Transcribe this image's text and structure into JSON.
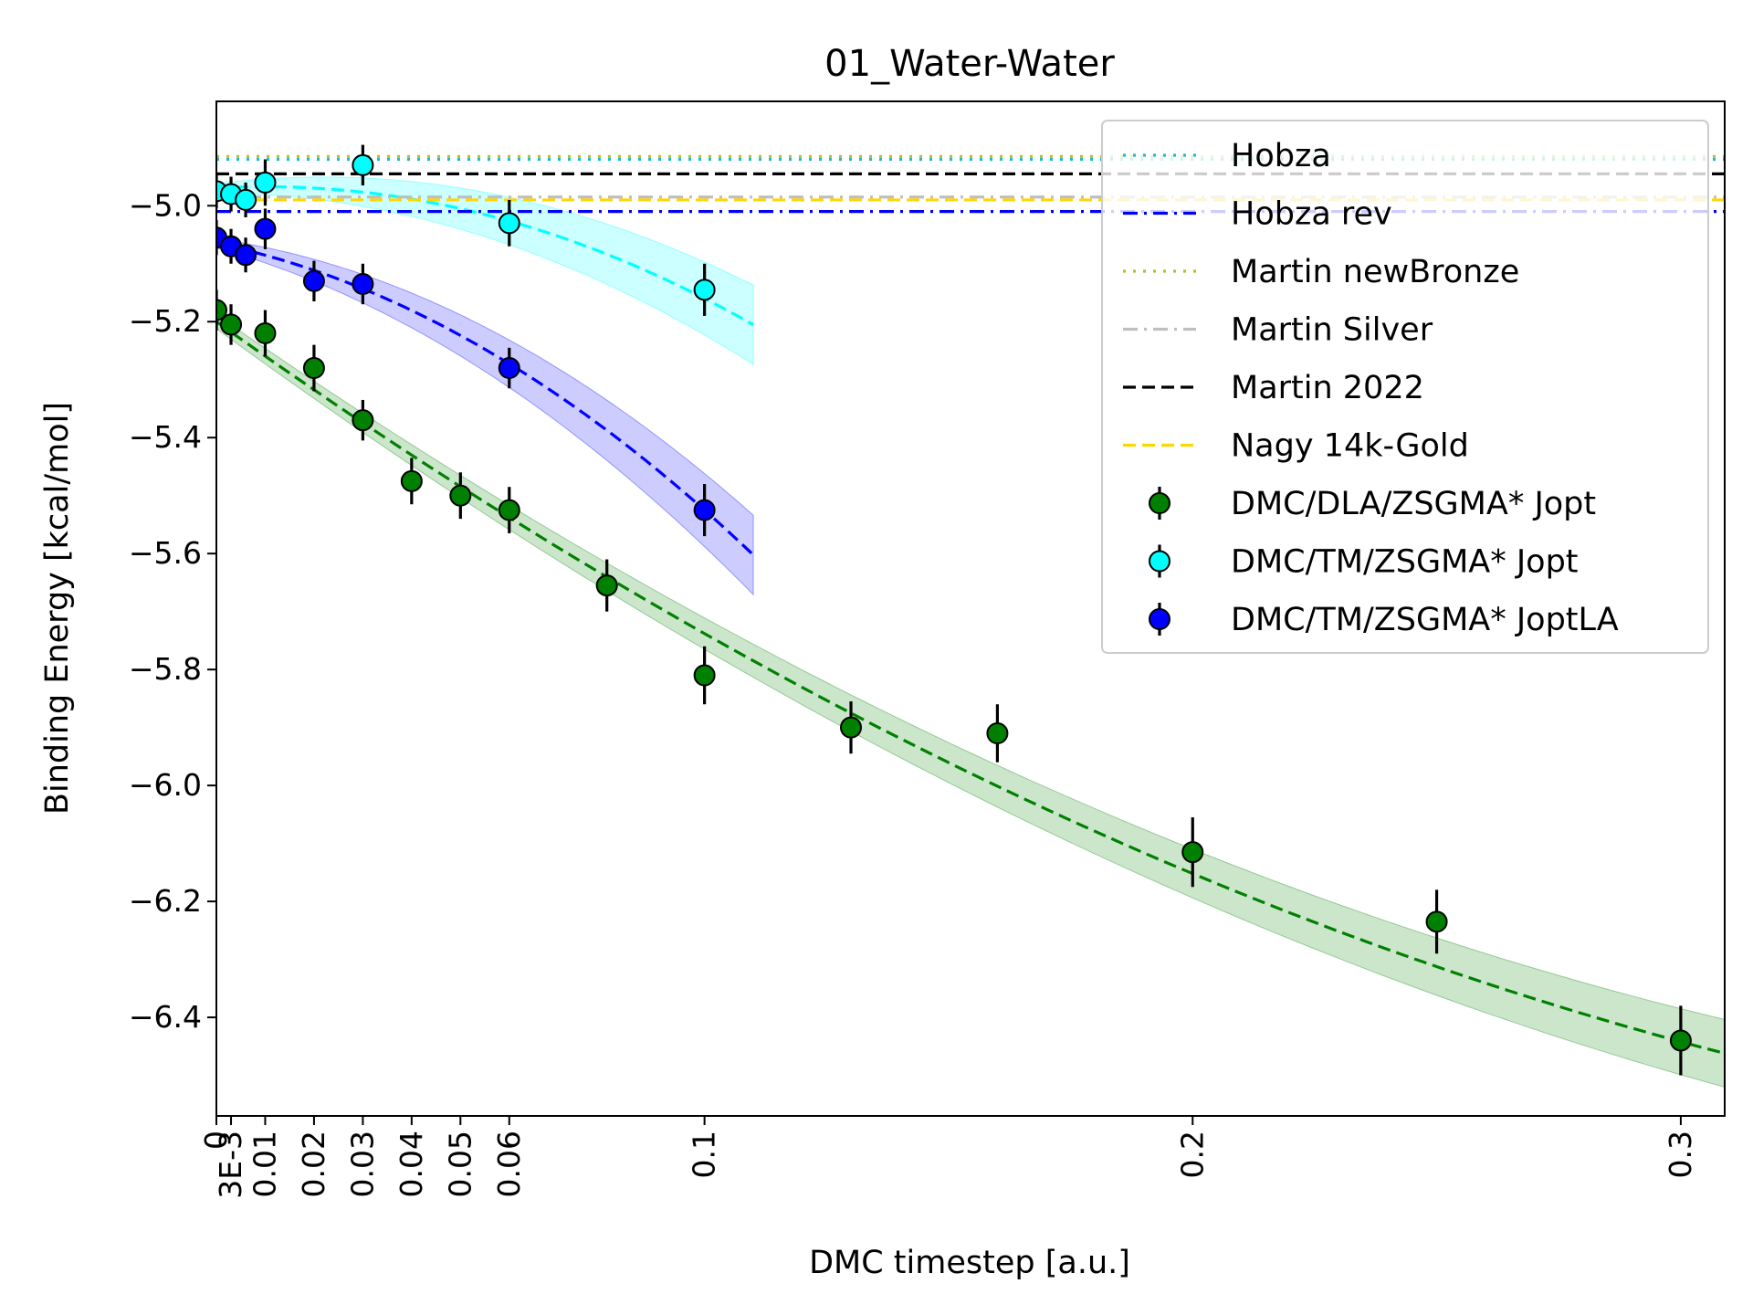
{
  "chart_data": {
    "type": "scatter",
    "title": "01_Water-Water",
    "xlabel": "DMC timestep [a.u.]",
    "ylabel": "Binding Energy [kcal/mol]",
    "xlim": [
      0,
      0.309
    ],
    "ylim": [
      -6.57,
      -4.82
    ],
    "grid": false,
    "legend_position": "top-right",
    "x_ticks": [
      {
        "value": 0,
        "label": "0"
      },
      {
        "value": 0.003,
        "label": "3E-3"
      },
      {
        "value": 0.01,
        "label": "0.01"
      },
      {
        "value": 0.02,
        "label": "0.02"
      },
      {
        "value": 0.03,
        "label": "0.03"
      },
      {
        "value": 0.04,
        "label": "0.04"
      },
      {
        "value": 0.05,
        "label": "0.05"
      },
      {
        "value": 0.06,
        "label": "0.06"
      },
      {
        "value": 0.1,
        "label": "0.1"
      },
      {
        "value": 0.2,
        "label": "0.2"
      },
      {
        "value": 0.3,
        "label": "0.3"
      }
    ],
    "y_ticks": [
      {
        "value": -5.0,
        "label": "−5.0"
      },
      {
        "value": -5.2,
        "label": "−5.2"
      },
      {
        "value": -5.4,
        "label": "−5.4"
      },
      {
        "value": -5.6,
        "label": "−5.6"
      },
      {
        "value": -5.8,
        "label": "−5.8"
      },
      {
        "value": -6.0,
        "label": "−6.0"
      },
      {
        "value": -6.2,
        "label": "−6.2"
      },
      {
        "value": -6.4,
        "label": "−6.4"
      }
    ],
    "reference_lines": [
      {
        "name": "Hobza",
        "y": -4.92,
        "color": "#17becf",
        "style": "dotted"
      },
      {
        "name": "Hobza rev",
        "y": -5.01,
        "color": "#0000ff",
        "style": "dashdot"
      },
      {
        "name": "Martin newBronze",
        "y": -4.915,
        "color": "#bcbd22",
        "style": "dotted"
      },
      {
        "name": "Martin Silver",
        "y": -4.985,
        "color": "#bfbfbf",
        "style": "dashdot"
      },
      {
        "name": "Martin 2022",
        "y": -4.945,
        "color": "#000000",
        "style": "dashed"
      },
      {
        "name": "Nagy 14k-Gold",
        "y": -4.99,
        "color": "#ffd700",
        "style": "dashed"
      }
    ],
    "series": [
      {
        "name": "DMC/DLA/ZSGMA* Jopt",
        "color": "#008000",
        "points": [
          {
            "x": 0.0,
            "y": -5.18,
            "err": 0.035
          },
          {
            "x": 0.003,
            "y": -5.205,
            "err": 0.035
          },
          {
            "x": 0.01,
            "y": -5.22,
            "err": 0.04
          },
          {
            "x": 0.02,
            "y": -5.28,
            "err": 0.04
          },
          {
            "x": 0.03,
            "y": -5.37,
            "err": 0.035
          },
          {
            "x": 0.04,
            "y": -5.475,
            "err": 0.04
          },
          {
            "x": 0.05,
            "y": -5.5,
            "err": 0.04
          },
          {
            "x": 0.06,
            "y": -5.525,
            "err": 0.04
          },
          {
            "x": 0.08,
            "y": -5.655,
            "err": 0.045
          },
          {
            "x": 0.1,
            "y": -5.81,
            "err": 0.05
          },
          {
            "x": 0.13,
            "y": -5.9,
            "err": 0.045
          },
          {
            "x": 0.16,
            "y": -5.91,
            "err": 0.05
          },
          {
            "x": 0.2,
            "y": -6.115,
            "err": 0.06
          },
          {
            "x": 0.25,
            "y": -6.235,
            "err": 0.055
          },
          {
            "x": 0.3,
            "y": -6.44,
            "err": 0.06
          }
        ],
        "fit": {
          "coeffs": [
            -5.2,
            -6.0,
            6.2
          ],
          "x_max": 0.309,
          "band": 0.012,
          "band_slope": 0.15
        }
      },
      {
        "name": "DMC/TM/ZSGMA* Jopt",
        "color": "#00ffff",
        "points": [
          {
            "x": 0.0,
            "y": -4.975,
            "err": 0.03
          },
          {
            "x": 0.003,
            "y": -4.98,
            "err": 0.03
          },
          {
            "x": 0.006,
            "y": -4.99,
            "err": 0.03
          },
          {
            "x": 0.01,
            "y": -4.96,
            "err": 0.04
          },
          {
            "x": 0.03,
            "y": -4.93,
            "err": 0.035
          },
          {
            "x": 0.06,
            "y": -5.03,
            "err": 0.04
          },
          {
            "x": 0.1,
            "y": -5.145,
            "err": 0.045
          }
        ],
        "fit": {
          "coeffs": [
            -4.97,
            0.5,
            -24.0
          ],
          "x_max": 0.11,
          "band": 0.008,
          "band_slope": 0.55
        }
      },
      {
        "name": "DMC/TM/ZSGMA* JoptLA",
        "color": "#0000ff",
        "points": [
          {
            "x": 0.0,
            "y": -5.055,
            "err": 0.03
          },
          {
            "x": 0.003,
            "y": -5.07,
            "err": 0.03
          },
          {
            "x": 0.006,
            "y": -5.085,
            "err": 0.03
          },
          {
            "x": 0.01,
            "y": -5.04,
            "err": 0.035
          },
          {
            "x": 0.02,
            "y": -5.13,
            "err": 0.035
          },
          {
            "x": 0.03,
            "y": -5.135,
            "err": 0.035
          },
          {
            "x": 0.06,
            "y": -5.28,
            "err": 0.035
          },
          {
            "x": 0.1,
            "y": -5.525,
            "err": 0.045
          }
        ],
        "fit": {
          "coeffs": [
            -5.065,
            -1.75,
            -28.5
          ],
          "x_max": 0.11,
          "band": 0.008,
          "band_slope": 0.55
        }
      }
    ]
  }
}
